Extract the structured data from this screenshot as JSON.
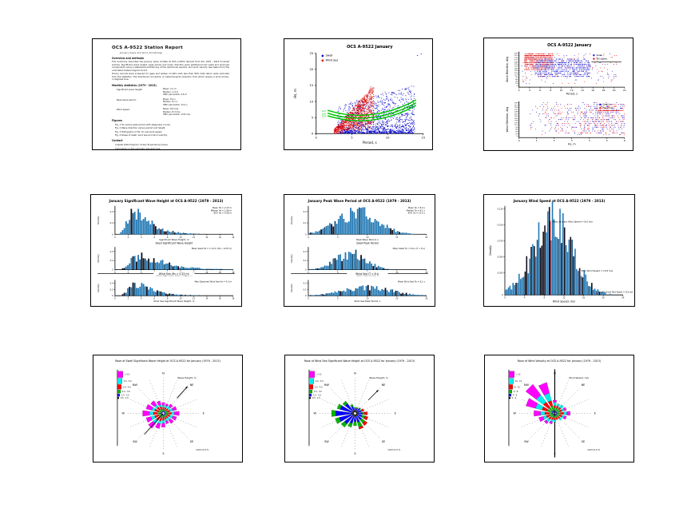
{
  "page": {
    "background": "#ffffff",
    "description": "Contact sheet of nine figures: station report page, wave scatter plots, histograms and rose diagrams for OCS A-9522, January climatology"
  },
  "colors": {
    "swell_blue": "#0000cc",
    "windsea_red": "#dd0000",
    "steepness_green": "#00c800",
    "hist_blue": "#1f77b4",
    "hist_dark": "#0b0b1a",
    "hist_mid": "#15507a",
    "annotation_red": "#ee0000",
    "rose": {
      "magenta": "#ff00ff",
      "cyan": "#00eeee",
      "red": "#ff0000",
      "green": "#00b400",
      "blue": "#0000ff",
      "black": "#000000"
    }
  },
  "chart_data": [
    {
      "id": "doc",
      "render": "doc",
      "type": "table",
      "title": "OCS A-9522 Station Report",
      "subtitle": "January wave and wind climatology",
      "lines": [
        {
          "style": "heading",
          "text": "Overview and methods"
        },
        {
          "style": "body",
          "text": "This summary describes the January wave climate at OCS A-9522 derived from the 1979 - 2013 hindcast archive. Significant wave height, peak period and mean direction were partitioned into swell and wind-sea components using a watershed partitioning of the directional spectra, and wind velocity was taken from the collocated meteorological record."
        },
        {
          "style": "body",
          "text": "Hourly records were screened for gaps and spikes; months with less than 80% data return were excluded from the statistics. The directional convention is meteorological (direction from which waves or wind arrive), in degrees true."
        },
        {
          "style": "heading",
          "text": "Monthly statistics (1979 - 2013)"
        },
        {
          "style": "row",
          "label": "Significant wave height:",
          "values": [
            "Mean: 2.1 m",
            "Median: 1.9 m",
            "95th percentile: 4.6 m"
          ]
        },
        {
          "style": "row",
          "label": "Peak wave period:",
          "values": [
            "Mean: 8.4 s",
            "Median: 8.1 s",
            "95th percentile: 13.2 s"
          ]
        },
        {
          "style": "row",
          "label": "Wind speed:",
          "values": [
            "Mean: 8.6 m/s",
            "Median: 8.3 m/s",
            "95th percentile: 13.8 m/s"
          ]
        },
        {
          "style": "heading",
          "text": "Figures"
        },
        {
          "style": "body2",
          "text": "Fig. 1  Hs versus peak period with steepness curves."
        },
        {
          "style": "body2",
          "text": "Fig. 2  Wave direction versus period and height."
        },
        {
          "style": "body2",
          "text": "Fig. 3  Histograms of Hs, Tp and wind speed."
        },
        {
          "style": "body2",
          "text": "Fig. 4  Roses of swell, wind sea and wind velocity."
        },
        {
          "style": "heading",
          "text": "Contact"
        },
        {
          "style": "body2",
          "text": "Coastal Data Program, Ocean Engineering Group."
        },
        {
          "style": "body2",
          "text": "Comments on this summary are welcome."
        },
        {
          "style": "gap"
        },
        {
          "style": "smallheading",
          "text": "Revision history"
        },
        {
          "style": "foot",
          "text": "Rev. 2 - January dataset extended through 2013; partitioned statistics recomputed and the rose diagrams regenerated with the updated calm threshold of 0.5 m/s."
        }
      ]
    },
    {
      "id": "scatter_hs",
      "render": "scatter_hs",
      "type": "scatter",
      "title": "OCS A-9522 January",
      "xlabel": "Period, s",
      "ylabel": "Hs, m",
      "xlim": [
        0,
        15
      ],
      "ylim": [
        0,
        25
      ],
      "xticks": [
        0,
        5,
        10,
        15
      ],
      "yticks": [
        0,
        5,
        10,
        15,
        20,
        25
      ],
      "legend": [
        {
          "label": "Swell",
          "color": "#0000cc"
        },
        {
          "label": "Wind Sea",
          "color": "#dd0000"
        }
      ],
      "series": [
        {
          "name": "Swell",
          "color": "#0000cc",
          "n": 1400,
          "seed": 13,
          "kind": "swell",
          "x_range": [
            3,
            14.5
          ],
          "y_range": [
            0.2,
            21
          ]
        },
        {
          "name": "Wind Sea",
          "color": "#dd0000",
          "n": 1000,
          "seed": 7,
          "kind": "windsea",
          "x_range": [
            2.5,
            8.5
          ],
          "y_range": [
            0.2,
            16
          ]
        }
      ],
      "outliers": [
        [
          14.2,
          24.3
        ],
        [
          14.7,
          24.8
        ]
      ],
      "steepness_lines": [
        {
          "label": "1/15",
          "a": 7.0
        },
        {
          "label": "1/20",
          "a": 6.1
        },
        {
          "label": "1/25",
          "a": 5.3
        }
      ]
    },
    {
      "id": "scatter_dir",
      "render": "scatter_dir",
      "type": "scatter",
      "title": "OCS A-9522 January",
      "legend": [
        {
          "label": "Swell",
          "color": "#0000cc"
        },
        {
          "label": "Wind Sea",
          "color": "#dd0000"
        }
      ],
      "compass": [
        "338",
        "315",
        "293",
        "270",
        "248",
        "225",
        "203",
        "180",
        "158",
        "135",
        "113",
        "90",
        "68",
        "45",
        "23",
        "0"
      ],
      "sub1": {
        "xlabel": "Period, s",
        "ylabel": "Wave Direction, deg",
        "xlim": [
          2,
          22
        ],
        "xticks": [
          2,
          4,
          6,
          8,
          10,
          12,
          14,
          16,
          18,
          20,
          22
        ]
      },
      "sub2": {
        "xlabel": "Hs, m",
        "ylabel": "Wave Direction, deg",
        "xlim": [
          0,
          6
        ],
        "xticks": [
          0,
          1,
          2,
          3,
          4,
          5,
          6
        ]
      }
    },
    {
      "id": "hist_hs",
      "render": "hists",
      "type": "bar",
      "title": "January Significant Wave Height at OCS A-9522 (1979 - 2013)",
      "ylabel": "Density",
      "subplots": [
        {
          "shape": "lognorm",
          "m": 0.22,
          "s": 0.52,
          "n": 68,
          "seed": 21,
          "scale": 1.0,
          "yticks": [
            "0.2",
            "0.4"
          ],
          "xticks": [
            "0",
            "2",
            "4",
            "6",
            "8",
            "10",
            "12",
            "14",
            "16",
            "18"
          ],
          "xlabel": "Significant Wave Height, m",
          "ann": [
            "Mean Hs = 2.13 m",
            "Median Hs = 1.96 m",
            "95% Hs = 4.58 m"
          ]
        },
        {
          "title": "Swell Significant Wave Height",
          "shape": "lognorm",
          "m": 0.3,
          "s": 0.55,
          "n": 68,
          "seed": 22,
          "scale": 0.8,
          "yticks": [
            "0.2",
            "0.4"
          ],
          "xticks": [
            "0",
            "2",
            "4",
            "6",
            "8",
            "10",
            "12",
            "14",
            "16",
            "18"
          ],
          "xlabel": "Swell Significant Wave Height, m",
          "ann": [
            "Mean Swell Hs = 1.74 m   (Hs > 0.25 m)"
          ]
        },
        {
          "divider": "Wind Sea   (Hs > 0.25 m)",
          "shape": "lognorm",
          "m": 0.24,
          "s": 0.5,
          "n": 68,
          "seed": 23,
          "scale": 0.9,
          "yticks": [
            "0.2",
            "0.4"
          ],
          "xticks": [
            "0",
            "2",
            "4",
            "6",
            "8",
            "10",
            "12",
            "14",
            "16",
            "18"
          ],
          "xlabel": "Wind Sea Significant Wave Height, m",
          "ann": [
            "Max Observed Wind Sea Hs = 4.3 m"
          ]
        }
      ]
    },
    {
      "id": "hist_tp",
      "render": "hists",
      "type": "bar",
      "title": "January Peak Wave Period at OCS A-9522 (1979 - 2013)",
      "ylabel": "Density",
      "subplots": [
        {
          "shape": "norm",
          "m": 0.42,
          "s": 0.17,
          "n": 68,
          "seed": 31,
          "scale": 1.0,
          "yticks": [
            "0.1",
            "0.2"
          ],
          "xticks": [
            "0",
            "5",
            "10",
            "15",
            "20"
          ],
          "xlabel": "Peak Wave Period, s",
          "ann": [
            "Mean Tp = 8.4 s",
            "Median Tp = 8.1 s",
            "95% Tp = 13.2 s"
          ]
        },
        {
          "title": "Swell Peak Period",
          "shape": "norm",
          "m": 0.36,
          "s": 0.13,
          "n": 68,
          "seed": 32,
          "scale": 0.9,
          "yticks": [
            "0.1",
            "0.2"
          ],
          "xticks": [
            "0",
            "5",
            "10",
            "15",
            "20"
          ],
          "xlabel": "Swell Peak Period, s",
          "ann": [
            "Mean Swell Tp = 9.6 s   (T > 8 s)"
          ]
        },
        {
          "divider": "Wind Sea   (T < 8 s)",
          "shape": "norm",
          "m": 0.5,
          "s": 0.2,
          "n": 68,
          "seed": 33,
          "scale": 0.72,
          "yticks": [
            "0.1",
            "0.2"
          ],
          "xticks": [
            "0",
            "5",
            "10",
            "15",
            "20"
          ],
          "xlabel": "Wind Sea Peak Period, s",
          "ann": [
            "Mean Wind Sea Tp = 6.1 s"
          ]
        }
      ]
    },
    {
      "id": "hist_wind",
      "render": "hists",
      "type": "bar",
      "title": "January Wind Speed at OCS A-9522 (1979 - 2013)",
      "ylabel": "Density",
      "subplots": [
        {
          "shape": "norm",
          "m": 0.4,
          "s": 0.165,
          "n": 78,
          "seed": 41,
          "scale": 1.0,
          "big": true,
          "yticks": [
            "0.125",
            "0.100",
            "0.075",
            "0.050",
            "0.025"
          ],
          "xticks": [
            "0",
            "4",
            "8",
            "12",
            "16",
            "20",
            "24"
          ],
          "xlabel": "Wind Speed, m/s",
          "red_lines": [
            {
              "fx": 0.385,
              "topFrac": 0.17,
              "ann": "Mean January Wind Speed = 8.6 m/s"
            },
            {
              "fx": 0.63,
              "topFrac": 0.72,
              "ann": "95% Wind Speed = 13.8 m/s"
            }
          ],
          "red_tick": {
            "fx": 0.78,
            "ann": "Max Observed Wind Speed = 22.6 m/s"
          }
        }
      ]
    },
    {
      "id": "rose_swell",
      "render": "rose",
      "type": "rose",
      "title": "Rose of Swell Significant Wave Height at OCS A-9522 for January (1979 - 2013)",
      "caption": "Wave Height, m",
      "calm": "Calm  0.0 %",
      "legend_bins": [
        "> 5.0",
        "4.0 - 5.0",
        "3.0 - 4.0",
        "2.0 - 3.0",
        "1.0 - 2.0",
        "0.5 - 1.0"
      ],
      "stack_order": [
        "blue",
        "green",
        "red",
        "cyan",
        "magenta"
      ],
      "scale": 1.25,
      "segments": [
        [
          1,
          2,
          2,
          2,
          3
        ],
        [
          1,
          2,
          2,
          2,
          2
        ],
        [
          1,
          2,
          2,
          3,
          3
        ],
        [
          1,
          2,
          3,
          3,
          4
        ],
        [
          1,
          3,
          3,
          3,
          5
        ],
        [
          1,
          2,
          3,
          3,
          4
        ],
        [
          1,
          2,
          2,
          3,
          4
        ],
        [
          1,
          2,
          2,
          2,
          3
        ],
        [
          1,
          2,
          3,
          3,
          4
        ],
        [
          1,
          3,
          3,
          3,
          5
        ],
        [
          1,
          3,
          4,
          4,
          6
        ],
        [
          1,
          3,
          4,
          4,
          5
        ],
        [
          2,
          3,
          4,
          4,
          7
        ],
        [
          1,
          3,
          4,
          3,
          6
        ],
        [
          1,
          3,
          3,
          3,
          5
        ],
        [
          1,
          2,
          3,
          2,
          4
        ]
      ],
      "vectors": [
        {
          "dir": 222,
          "r0": 0,
          "r1": 36,
          "arrow": false
        },
        {
          "dir": 42,
          "r0": 26,
          "r1": 46,
          "arrow": true
        }
      ]
    },
    {
      "id": "rose_sea",
      "render": "rose",
      "type": "rose",
      "title": "Rose of Wind Sea Significant Wave Height at OCS A-9522 for January (1979 - 2013)",
      "caption": "Wave Height, m",
      "calm": "Calm  0.0 %",
      "legend_bins": [
        "> 5.0",
        "4.0 - 5.0",
        "3.0 - 4.0",
        "2.0 - 3.0",
        "1.0 - 2.0",
        "0.5 - 1.0"
      ],
      "stack_order": [
        "black",
        "blue",
        "green",
        "red"
      ],
      "scale": 1.3,
      "segments": [
        [
          2,
          2,
          1,
          0
        ],
        [
          2,
          2,
          1,
          0
        ],
        [
          2,
          3,
          1,
          0
        ],
        [
          2,
          3,
          1,
          2
        ],
        [
          2,
          4,
          2,
          3
        ],
        [
          2,
          4,
          3,
          3
        ],
        [
          2,
          5,
          4,
          3
        ],
        [
          2,
          6,
          5,
          2
        ],
        [
          2,
          5,
          4,
          0
        ],
        [
          2,
          7,
          4,
          0
        ],
        [
          2,
          10,
          4,
          0
        ],
        [
          2,
          13,
          4,
          0
        ],
        [
          3,
          15,
          4,
          0
        ],
        [
          2,
          12,
          3,
          0
        ],
        [
          2,
          9,
          3,
          0
        ],
        [
          2,
          4,
          2,
          0
        ]
      ],
      "vectors": [
        {
          "dir": 45,
          "r0": 24,
          "r1": 42,
          "arrow": true
        }
      ]
    },
    {
      "id": "rose_wind",
      "render": "rose",
      "type": "rose",
      "title": "Rose of Wind Velocity at OCS A-9522 for January (1979 - 2013)",
      "caption": "Wind Speed, m/s",
      "calm": "Calm  0.0 %",
      "legend_bins": [
        "> 12",
        "10 - 12",
        "8 - 10",
        "6 - 8",
        "4 - 6",
        "2 - 4"
      ],
      "stack_order": [
        "blue",
        "green",
        "red",
        "cyan",
        "magenta"
      ],
      "scale": 1.4,
      "segments": [
        [
          1,
          3,
          2,
          3,
          2
        ],
        [
          1,
          3,
          2,
          2,
          0
        ],
        [
          1,
          3,
          2,
          3,
          0
        ],
        [
          1,
          3,
          2,
          2,
          2
        ],
        [
          1,
          3,
          3,
          3,
          3
        ],
        [
          1,
          3,
          2,
          2,
          2
        ],
        [
          1,
          2,
          2,
          2,
          0
        ],
        [
          1,
          2,
          2,
          0,
          0
        ],
        [
          1,
          2,
          2,
          2,
          0
        ],
        [
          1,
          2,
          2,
          2,
          2
        ],
        [
          1,
          3,
          2,
          3,
          2
        ],
        [
          1,
          3,
          3,
          3,
          4
        ],
        [
          1,
          3,
          4,
          4,
          6
        ],
        [
          2,
          4,
          5,
          6,
          9
        ],
        [
          2,
          4,
          6,
          8,
          12
        ],
        [
          2,
          4,
          5,
          7,
          10
        ]
      ],
      "axis_ns": true,
      "vectors": []
    }
  ],
  "compass_labels": [
    "N",
    "NE",
    "E",
    "SE",
    "S",
    "SW",
    "W",
    "NW"
  ]
}
